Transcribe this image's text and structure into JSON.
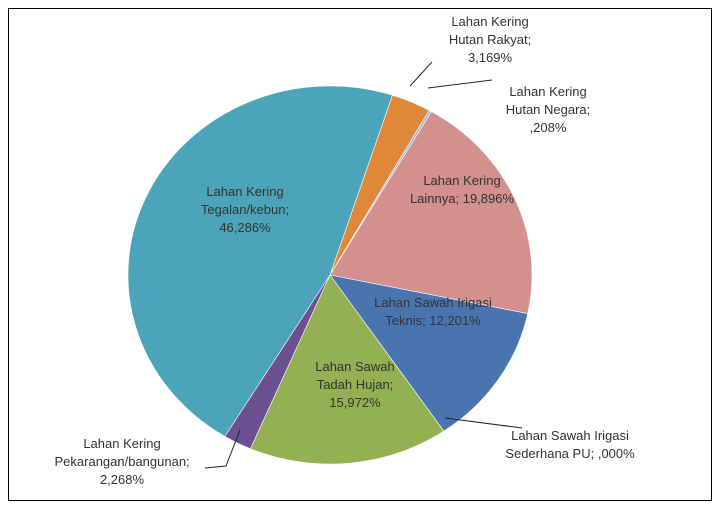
{
  "chart_data": {
    "type": "pie",
    "categories": [
      "Lahan Kering Hutan Rakyat;",
      "Lahan Kering Hutan Negara;",
      "Lahan Kering Lainnya;",
      "Lahan Sawah Irigasi Teknis;",
      "Lahan Sawah Irigasi Sederhana PU;",
      "Lahan Sawah Tadah Hujan;",
      "Lahan Kering Pekarangan/bangunan;",
      "Lahan Kering Tegalan/kebun;"
    ],
    "values": [
      3.169,
      0.208,
      19.896,
      12.201,
      0,
      15.972,
      2.268,
      46.286
    ],
    "value_labels": [
      "3,169%",
      ",208%",
      "19,896%",
      "12,201%",
      ",000%",
      "15,972%",
      "2,268%",
      "46,286%"
    ],
    "colors": [
      "#e0883a",
      "#9fb4d4",
      "#d48f8f",
      "#4a74ad",
      "#7b5ea7",
      "#93b052",
      "#6c4f90",
      "#4ba4b9"
    ]
  }
}
